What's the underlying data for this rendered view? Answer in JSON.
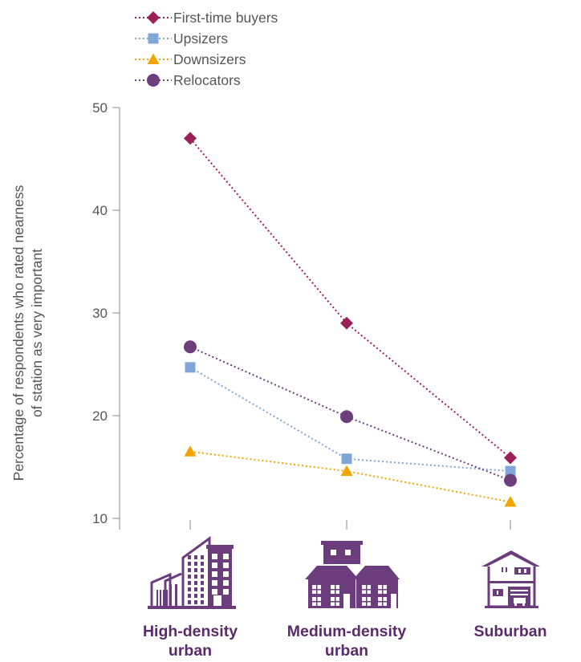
{
  "chart_data": {
    "type": "line",
    "ylabel": [
      "Percentage of respondents who rated nearness",
      "of station as very important"
    ],
    "ylim": [
      10,
      50
    ],
    "yticks": [
      10,
      20,
      30,
      40,
      50
    ],
    "categories": [
      {
        "lines": [
          "High-density",
          "urban"
        ],
        "icon": "high-density-buildings-icon"
      },
      {
        "lines": [
          "Medium-density",
          "urban"
        ],
        "icon": "medium-density-houses-icon"
      },
      {
        "lines": [
          "Suburban"
        ],
        "icon": "suburban-house-icon"
      }
    ],
    "series": [
      {
        "name": "First-time buyers",
        "values": [
          47,
          29,
          15.9
        ],
        "color": "#9c1f5a",
        "marker": "diamond"
      },
      {
        "name": "Upsizers",
        "values": [
          24.7,
          15.8,
          14.6
        ],
        "color": "#7fa6d6",
        "marker": "square"
      },
      {
        "name": "Downsizers",
        "values": [
          16.5,
          14.6,
          11.6
        ],
        "color": "#f0a500",
        "marker": "triangle"
      },
      {
        "name": "Relocators",
        "values": [
          26.7,
          19.9,
          13.7
        ],
        "color": "#6e3d7b",
        "marker": "circle"
      }
    ],
    "legend_position": "top-left",
    "grid": false
  }
}
